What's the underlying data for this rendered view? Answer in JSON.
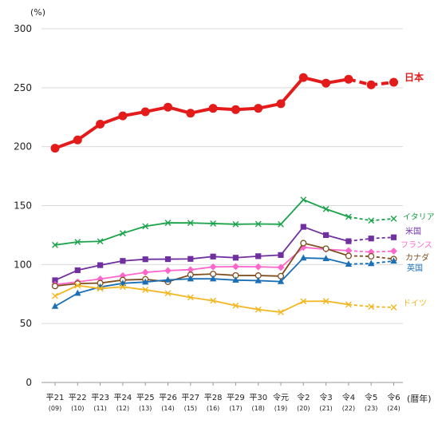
{
  "chart_data": {
    "type": "line",
    "y_unit": "(%)",
    "x_unit": "(暦年)",
    "ylim": [
      0,
      300
    ],
    "yticks": [
      0,
      50,
      100,
      150,
      200,
      250,
      300
    ],
    "grid": "horizontal",
    "categories": [
      "平21",
      "平22",
      "平23",
      "平24",
      "平25",
      "平26",
      "平27",
      "平28",
      "平29",
      "平30",
      "令元",
      "令2",
      "令3",
      "令4",
      "令5",
      "令6"
    ],
    "category_years": [
      "(09)",
      "(10)",
      "(11)",
      "(12)",
      "(13)",
      "(14)",
      "(15)",
      "(16)",
      "(17)",
      "(18)",
      "(19)",
      "(20)",
      "(21)",
      "(22)",
      "(23)",
      "(24)"
    ],
    "dashed_from_index": 13,
    "series": [
      {
        "name": "日本",
        "color": "#e31b1b",
        "marker": "circle",
        "emphasis": true,
        "values": [
          198.7,
          205.7,
          219.1,
          226.1,
          229.6,
          233.5,
          228.4,
          232.5,
          231.4,
          232.5,
          236.4,
          258.6,
          253.9,
          257.2,
          252.4,
          254.6
        ]
      },
      {
        "name": "イタリア",
        "color": "#1aa34a",
        "marker": "x",
        "values": [
          116.6,
          119.2,
          119.7,
          126.5,
          132.5,
          135.4,
          135.3,
          134.8,
          134.2,
          134.4,
          134.2,
          155.0,
          147.1,
          140.5,
          137.3,
          138.9
        ]
      },
      {
        "name": "米国",
        "color": "#7030a0",
        "marker": "square",
        "values": [
          86.7,
          95.2,
          99.5,
          103.1,
          104.5,
          104.6,
          104.8,
          106.8,
          105.8,
          107.1,
          108.1,
          132.0,
          125.0,
          119.8,
          122.1,
          123.1
        ]
      },
      {
        "name": "フランス",
        "color": "#ff66cc",
        "marker": "diamond",
        "values": [
          83.0,
          85.3,
          87.8,
          90.6,
          93.4,
          94.9,
          95.6,
          98.0,
          98.3,
          98.1,
          97.6,
          114.6,
          112.9,
          111.8,
          110.6,
          111.4
        ]
      },
      {
        "name": "カナダ",
        "color": "#7f4f20",
        "marker": "circle-open",
        "values": [
          81.8,
          83.9,
          84.3,
          86.9,
          87.5,
          85.4,
          91.3,
          92.0,
          90.8,
          90.7,
          90.2,
          118.2,
          113.5,
          107.4,
          107.0,
          104.7
        ]
      },
      {
        "name": "英国",
        "color": "#1a6fb5",
        "marker": "triangle",
        "values": [
          64.6,
          75.7,
          81.0,
          84.1,
          85.2,
          87.0,
          87.9,
          87.9,
          86.8,
          86.4,
          85.6,
          105.6,
          105.1,
          100.4,
          100.9,
          103.0
        ]
      },
      {
        "name": "ドイツ",
        "color": "#f3b61f",
        "marker": "x",
        "values": [
          73.4,
          82.3,
          79.7,
          81.1,
          78.6,
          75.7,
          72.1,
          69.3,
          65.2,
          61.9,
          59.6,
          68.8,
          69.0,
          66.1,
          64.3,
          63.7
        ]
      }
    ]
  }
}
